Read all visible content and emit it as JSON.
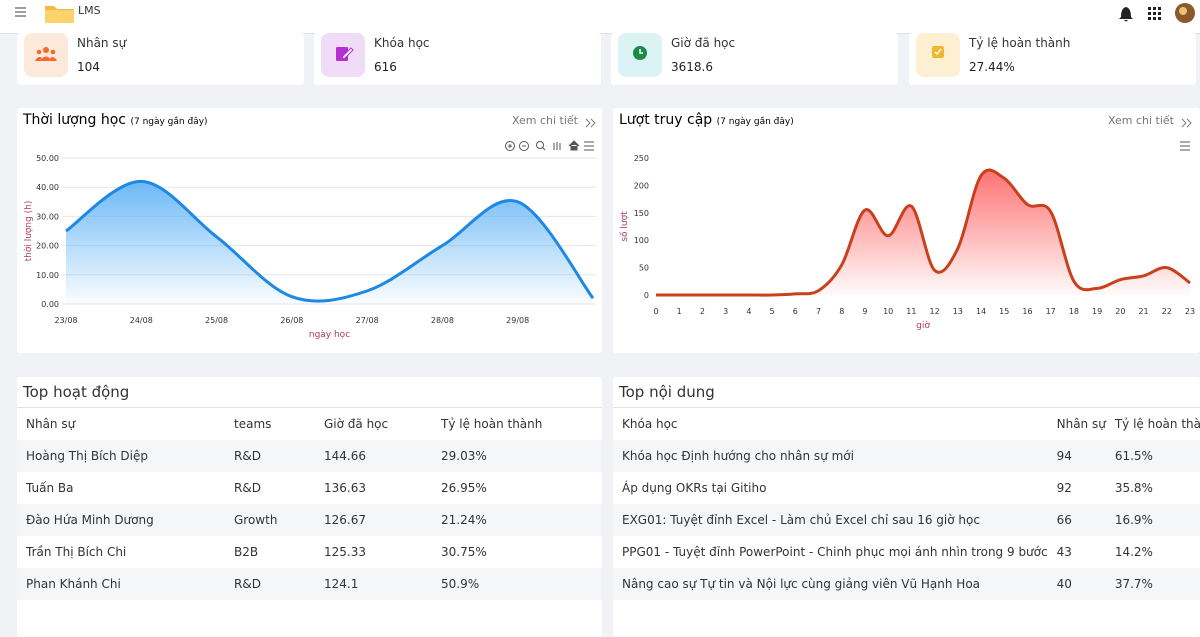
{
  "header": {
    "brand": "LMS"
  },
  "stats": [
    {
      "label": "Nhân sự",
      "value": "104"
    },
    {
      "label": "Khóa học",
      "value": "616"
    },
    {
      "label": "Giờ đã học",
      "value": "3618.6"
    },
    {
      "label": "Tỷ lệ hoàn thành",
      "value": "27.44%"
    }
  ],
  "chart_data": [
    {
      "type": "line",
      "title": "Thời lượng học",
      "subtitle": "(7 ngày gần đây)",
      "link": "Xem chi tiết",
      "xlabel": "ngày học",
      "ylabel": "thời lượng (h)",
      "categories": [
        "23/08",
        "24/08",
        "25/08",
        "26/08",
        "27/08",
        "28/08",
        "29/08",
        null
      ],
      "values": [
        25,
        42,
        23,
        2.5,
        4.5,
        20,
        35,
        2
      ],
      "color": "#1e88e5",
      "fill": "#64b5f6",
      "ylim": [
        0,
        50
      ],
      "yticks": [
        {
          "value": 0,
          "label": "0.00"
        },
        {
          "value": 10,
          "label": "10.00"
        },
        {
          "value": 20,
          "label": "20.00"
        },
        {
          "value": 30,
          "label": "30.00"
        },
        {
          "value": 40,
          "label": "40.00"
        },
        {
          "value": 50,
          "label": "50.00"
        }
      ],
      "grid": true
    },
    {
      "type": "line",
      "title": "Lượt truy cập",
      "subtitle": "(7 ngày gần đây)",
      "link": "Xem chi tiết",
      "xlabel": "giờ",
      "ylabel": "số lượt",
      "categories": [
        "0",
        "1",
        "2",
        "3",
        "4",
        "5",
        "6",
        "7",
        "8",
        "9",
        "10",
        "11",
        "12",
        "13",
        "14",
        "15",
        "16",
        "17",
        "18",
        "19",
        "20",
        "21",
        "22",
        "23"
      ],
      "values": [
        0,
        0,
        0,
        0,
        0,
        0,
        2,
        8,
        55,
        155,
        108,
        162,
        45,
        85,
        218,
        213,
        165,
        152,
        25,
        12,
        28,
        35,
        50,
        22
      ],
      "color": "#c8401c",
      "fill": "#ff6b6b",
      "ylim": [
        0,
        250
      ],
      "yticks": [
        0,
        50,
        100,
        150,
        200,
        250
      ],
      "grid": false
    }
  ],
  "tables": [
    {
      "title": "Top hoạt động",
      "columns": [
        "Nhân sự",
        "teams",
        "Giờ đã học",
        "Tỷ lệ hoàn thành"
      ],
      "rows": [
        [
          "Hoàng Thị Bích Diệp",
          "R&D",
          "144.66",
          "29.03%"
        ],
        [
          "Tuấn Ba",
          "R&D",
          "136.63",
          "26.95%"
        ],
        [
          "Đào Hứa Minh Dương",
          "Growth",
          "126.67",
          "21.24%"
        ],
        [
          "Trần Thị Bích Chi",
          "B2B",
          "125.33",
          "30.75%"
        ],
        [
          "Phan Khánh Chi",
          "R&D",
          "124.1",
          "50.9%"
        ]
      ]
    },
    {
      "title": "Top nội dung",
      "columns": [
        "Khóa học",
        "Nhân sự",
        "Tỷ lệ hoàn thành"
      ],
      "rows": [
        [
          "Khóa học Định hướng cho nhân sự mới",
          "94",
          "61.5%"
        ],
        [
          "Áp dụng OKRs tại Gitiho",
          "92",
          "35.8%"
        ],
        [
          "EXG01: Tuyệt đỉnh Excel - Làm chủ Excel chỉ sau 16 giờ học",
          "66",
          "16.9%"
        ],
        [
          "PPG01 - Tuyệt đỉnh PowerPoint - Chinh phục mọi ánh nhìn trong 9 bước",
          "43",
          "14.2%"
        ],
        [
          "Nâng cao sự Tự tin và Nội lực cùng giảng viên Vũ Hạnh Hoa",
          "40",
          "37.7%"
        ]
      ]
    }
  ]
}
